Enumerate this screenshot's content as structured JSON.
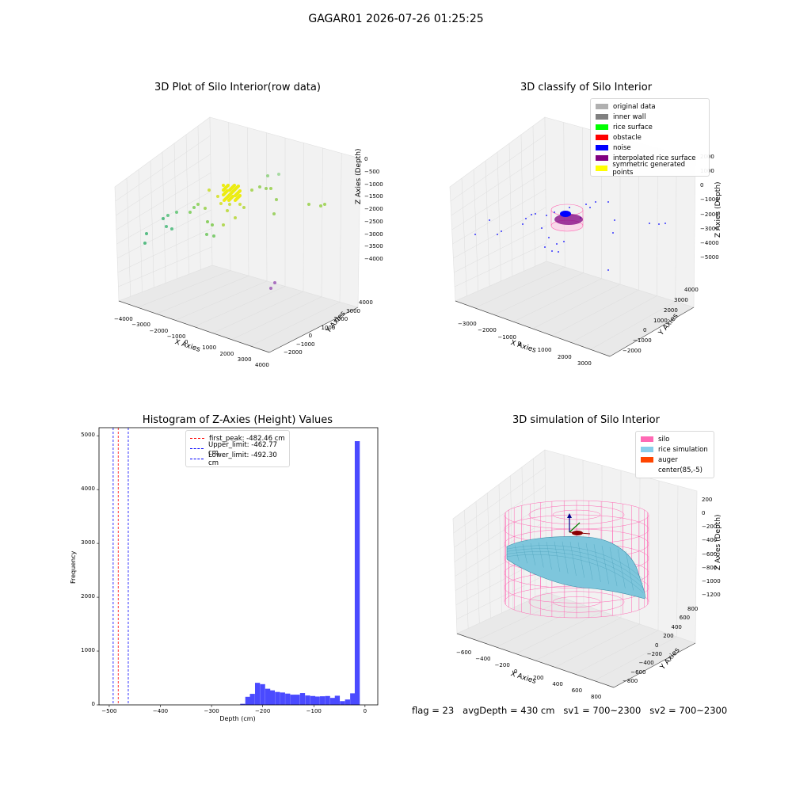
{
  "figure": {
    "suptitle": "GAGAR01 2026-07-26 01:25:25"
  },
  "colors": {
    "original_data": "#b0b0b0",
    "inner_wall": "#808080",
    "rice_surface": "#00ff00",
    "obstacle": "#ff0000",
    "noise": "#0000ff",
    "interpolated_rice_surface": "#800080",
    "symmetric_generated_points": "#ffff00",
    "silo": "#ff69b4",
    "rice_simulation": "#87ceeb",
    "auger": "#ff4500",
    "histogram_bar": "#4a4aff",
    "first_peak_line": "#ff0000",
    "limit_line": "#0000ff"
  },
  "chart_data": [
    {
      "type": "scatter",
      "title": "3D Plot of Silo Interior(row data)",
      "xlabel": "X Axies",
      "ylabel": "Y Axies",
      "zlabel": "Z Axies (Depth)",
      "xticks": [
        "−4000",
        "−3000",
        "−2000",
        "−1000",
        "0",
        "1000",
        "2000",
        "3000",
        "4000"
      ],
      "yticks": [
        "−2000",
        "−1000",
        "0",
        "1000",
        "2000",
        "3000",
        "4000"
      ],
      "zticks": [
        "0",
        "−500",
        "−1000",
        "−1500",
        "−2000",
        "−2500",
        "−3000",
        "−3500",
        "−4000"
      ]
    },
    {
      "type": "scatter",
      "title": "3D classify of Silo Interior",
      "xlabel": "X Axies",
      "ylabel": "Y Axies",
      "zlabel": "Z Axies (Depth)",
      "xticks": [
        "−3000",
        "−2000",
        "−1000",
        "0",
        "1000",
        "2000",
        "3000"
      ],
      "yticks": [
        "−2000",
        "−1000",
        "0",
        "1000",
        "2000",
        "3000",
        "4000"
      ],
      "zticks": [
        "2000",
        "1000",
        "0",
        "−1000",
        "−2000",
        "−3000",
        "−4000",
        "−5000"
      ],
      "legend": [
        "original data",
        "inner wall",
        "rice surface",
        "obstacle",
        "noise",
        "interpolated rice surface",
        "symmetric generated points"
      ],
      "legend_position": "top-right"
    },
    {
      "type": "bar",
      "title": "Histogram of Z-Axies (Height) Values",
      "xlabel": "Depth (cm)",
      "ylabel": "Frequency",
      "xlim": [
        -520,
        25
      ],
      "ylim": [
        0,
        5150
      ],
      "xticks": [
        -500,
        -400,
        -300,
        -200,
        -100,
        0
      ],
      "yticks": [
        0,
        1000,
        2000,
        3000,
        4000,
        5000
      ],
      "bin_width": 9.77,
      "bins": [
        [
          -244,
          20
        ],
        [
          -234,
          150
        ],
        [
          -225,
          205
        ],
        [
          -215,
          410
        ],
        [
          -205,
          385
        ],
        [
          -195,
          300
        ],
        [
          -186,
          270
        ],
        [
          -176,
          240
        ],
        [
          -166,
          230
        ],
        [
          -156,
          210
        ],
        [
          -146,
          190
        ],
        [
          -137,
          190
        ],
        [
          -127,
          220
        ],
        [
          -117,
          175
        ],
        [
          -107,
          165
        ],
        [
          -98,
          155
        ],
        [
          -88,
          160
        ],
        [
          -78,
          165
        ],
        [
          -68,
          130
        ],
        [
          -59,
          170
        ],
        [
          -49,
          70
        ],
        [
          -39,
          100
        ],
        [
          -29,
          215
        ],
        [
          -20,
          4900
        ]
      ],
      "vlines": [
        {
          "label": "first_peak: -482.46 cm",
          "x": -482.46,
          "color": "#ff0000"
        },
        {
          "label": "Upper_limit: -462.77 cm",
          "x": -462.77,
          "color": "#0000ff"
        },
        {
          "label": "Lower_limit: -492.30 cm",
          "x": -492.3,
          "color": "#0000ff"
        }
      ],
      "legend_position": "top-center"
    },
    {
      "type": "surface",
      "title": "3D simulation of Silo Interior",
      "xlabel": "X Axies",
      "ylabel": "Y Axies",
      "zlabel": "Z Axies (Depth)",
      "xticks": [
        "−600",
        "−400",
        "−200",
        "0",
        "200",
        "400",
        "600",
        "800"
      ],
      "yticks": [
        "−800",
        "−600",
        "−400",
        "−200",
        "0",
        "200",
        "400",
        "600",
        "800"
      ],
      "zticks": [
        "200",
        "0",
        "−200",
        "−400",
        "−600",
        "−800",
        "−1000",
        "−1200"
      ],
      "legend": [
        "silo",
        "rice simulation",
        "auger",
        "center(85,-5)"
      ],
      "legend_position": "top-right"
    }
  ],
  "status": {
    "flag": "flag = 23",
    "avg_depth": "avgDepth = 430 cm",
    "sv1": "sv1 = 700~2300",
    "sv2": "sv2 = 700~2300"
  }
}
